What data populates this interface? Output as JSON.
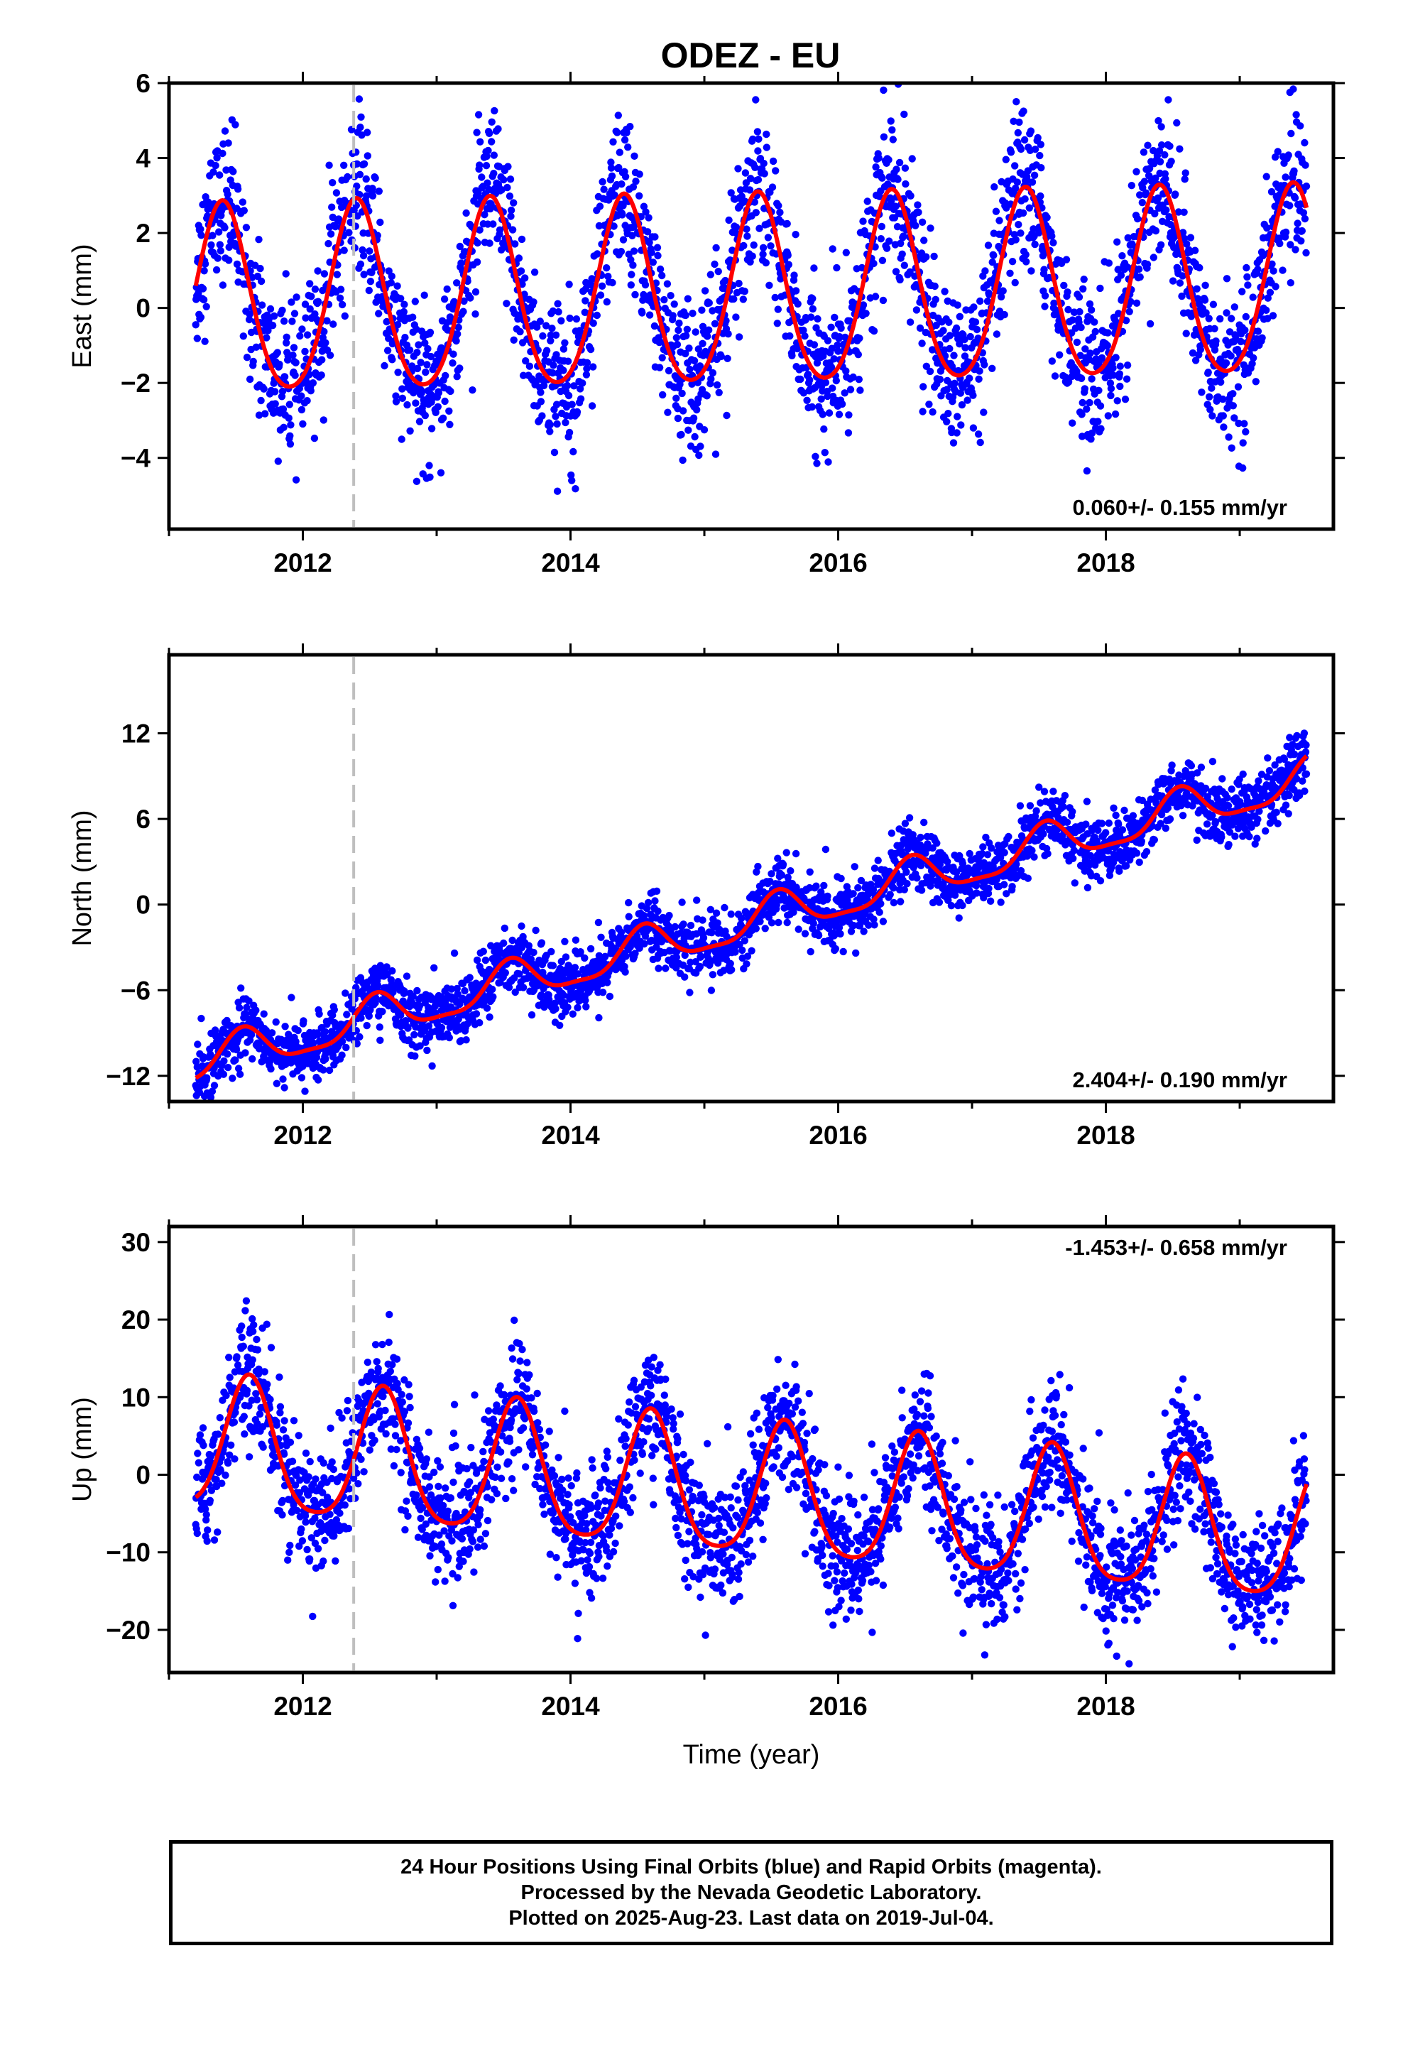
{
  "title": "ODEZ - EU",
  "chart_data": [
    {
      "type": "scatter",
      "name": "East",
      "ylabel": "East (mm)",
      "xlabel": "",
      "xlim": [
        2011.0,
        2019.7
      ],
      "ylim": [
        -5.9,
        6.0
      ],
      "xticks": [
        "2012",
        "2014",
        "2016",
        "2018"
      ],
      "yticks": [
        "−4",
        "−2",
        "0",
        "2",
        "4",
        "6"
      ],
      "yticks_values": [
        -4,
        -2,
        0,
        2,
        4,
        6
      ],
      "rate_label": "0.060+/- 0.155 mm/yr",
      "rate_label_position": "bottom-right",
      "equipment_change_x": 2012.38,
      "model": {
        "offset": 0.06,
        "trend": 0.06,
        "annual_amplitude": 2.5,
        "peak_year_fraction": 0.4,
        "semiannual_amplitude": 0.3,
        "noise_sd": 1.0
      },
      "series": [
        {
          "label": "daily positions (blue)",
          "color": "#0000ff"
        },
        {
          "label": "model fit (red)",
          "color": "#ff0000"
        }
      ]
    },
    {
      "type": "scatter",
      "name": "North",
      "ylabel": "North (mm)",
      "xlabel": "",
      "xlim": [
        2011.0,
        2019.7
      ],
      "ylim": [
        -13.8,
        17.5
      ],
      "xticks": [
        "2012",
        "2014",
        "2016",
        "2018"
      ],
      "yticks": [
        "−12",
        "−6",
        "0",
        "6",
        "12"
      ],
      "yticks_values": [
        -12,
        -6,
        0,
        6,
        12
      ],
      "rate_label": "2.404+/- 0.190 mm/yr",
      "rate_label_position": "bottom-right",
      "equipment_change_x": 2012.38,
      "model": {
        "offset": -11.2,
        "trend": 2.404,
        "annual_amplitude": 1.4,
        "peak_year_fraction": 0.55,
        "semiannual_amplitude": 0.4,
        "noise_sd": 1.1
      },
      "series": [
        {
          "label": "daily positions (blue)",
          "color": "#0000ff"
        },
        {
          "label": "model fit (red)",
          "color": "#ff0000"
        }
      ]
    },
    {
      "type": "scatter",
      "name": "Up",
      "ylabel": "Up (mm)",
      "xlabel": "Time (year)",
      "xlim": [
        2011.0,
        2019.7
      ],
      "ylim": [
        -25.5,
        32.0
      ],
      "xticks": [
        "2012",
        "2014",
        "2016",
        "2018"
      ],
      "yticks": [
        "−20",
        "−10",
        "0",
        "10",
        "20",
        "30"
      ],
      "yticks_values": [
        -20,
        -10,
        0,
        10,
        20,
        30
      ],
      "rate_label": "-1.453+/- 0.658 mm/yr",
      "rate_label_position": "top-right",
      "equipment_change_x": 2012.38,
      "model": {
        "offset": 3.5,
        "trend": -1.453,
        "annual_amplitude": 8.5,
        "peak_year_fraction": 0.6,
        "semiannual_amplitude": 1.5,
        "noise_sd": 4.0
      },
      "series": [
        {
          "label": "daily positions (blue)",
          "color": "#0000ff"
        },
        {
          "label": "model fit (red)",
          "color": "#ff0000"
        }
      ]
    }
  ],
  "footer": {
    "line1": "24 Hour Positions Using Final Orbits (blue) and Rapid Orbits (magenta).",
    "line2": "Processed by the Nevada Geodetic Laboratory.",
    "line3": "Plotted on 2025-Aug-23. Last data on 2019-Jul-04."
  }
}
